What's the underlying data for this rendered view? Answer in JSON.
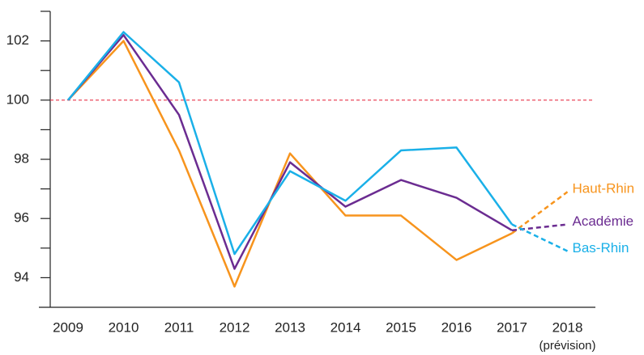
{
  "chart_data": {
    "type": "line",
    "categories": [
      "2009",
      "2010",
      "2011",
      "2012",
      "2013",
      "2014",
      "2015",
      "2016",
      "2017",
      "2018"
    ],
    "forecast_label": "(prévision)",
    "forecast_from": 8,
    "series": [
      {
        "name": "Haut-Rhin",
        "color": "#f7941d",
        "values": [
          100,
          102.0,
          98.3,
          93.7,
          98.2,
          96.1,
          96.1,
          94.6,
          95.5,
          96.9
        ]
      },
      {
        "name": "Académie",
        "color": "#6b2c91",
        "values": [
          100,
          102.2,
          99.5,
          94.3,
          97.9,
          96.4,
          97.3,
          96.7,
          95.6,
          95.8
        ]
      },
      {
        "name": "Bas-Rhin",
        "color": "#1ab0e8",
        "values": [
          100,
          102.3,
          100.6,
          94.8,
          97.6,
          96.6,
          98.3,
          98.4,
          95.8,
          94.9
        ]
      }
    ],
    "ylim": [
      93,
      103
    ],
    "yticks": [
      94,
      96,
      98,
      100,
      102
    ],
    "y_minor_ticks": [
      95,
      97,
      99,
      101,
      103
    ],
    "reference_line": {
      "value": 100,
      "color": "#e8334a"
    }
  }
}
